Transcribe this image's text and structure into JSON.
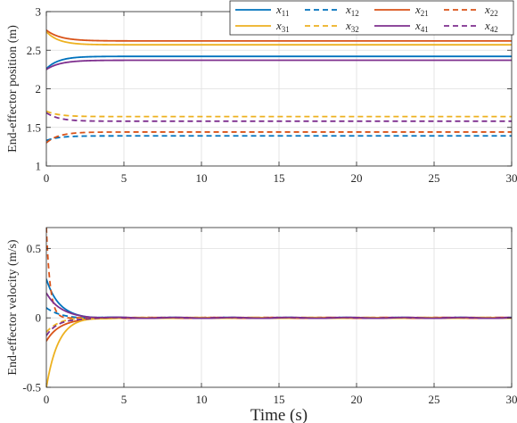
{
  "chart_data": [
    {
      "type": "line",
      "xlabel": "",
      "ylabel": "End-effector position (m)",
      "xlim": [
        0,
        30
      ],
      "ylim": [
        1,
        3
      ],
      "xticks": [
        "0",
        "5",
        "10",
        "15",
        "20",
        "25",
        "30"
      ],
      "yticks": [
        "1",
        "1.5",
        "2",
        "2.5",
        "3"
      ],
      "grid": true,
      "legend": "top-right",
      "series": [
        {
          "name": "x11",
          "sub": "11",
          "base": "x",
          "color": "#0072BD",
          "dash": false,
          "start": 2.26,
          "final": 2.42,
          "tau": 0.8
        },
        {
          "name": "x12",
          "sub": "12",
          "base": "x",
          "color": "#0072BD",
          "dash": true,
          "start": 1.33,
          "final": 1.39,
          "tau": 0.8
        },
        {
          "name": "x21",
          "sub": "21",
          "base": "x",
          "color": "#D95319",
          "dash": false,
          "start": 2.76,
          "final": 2.62,
          "tau": 0.9
        },
        {
          "name": "x22",
          "sub": "22",
          "base": "x",
          "color": "#D95319",
          "dash": true,
          "start": 1.3,
          "final": 1.44,
          "tau": 0.8
        },
        {
          "name": "x31",
          "sub": "31",
          "base": "x",
          "color": "#EDB120",
          "dash": false,
          "start": 2.74,
          "final": 2.57,
          "tau": 0.8
        },
        {
          "name": "x32",
          "sub": "32",
          "base": "x",
          "color": "#EDB120",
          "dash": true,
          "start": 1.71,
          "final": 1.64,
          "tau": 0.8
        },
        {
          "name": "x41",
          "sub": "41",
          "base": "x",
          "color": "#7E2F8E",
          "dash": false,
          "start": 2.25,
          "final": 2.37,
          "tau": 0.9
        },
        {
          "name": "x42",
          "sub": "42",
          "base": "x",
          "color": "#7E2F8E",
          "dash": true,
          "start": 1.69,
          "final": 1.58,
          "tau": 0.8
        }
      ]
    },
    {
      "type": "line",
      "xlabel": "Time (s)",
      "ylabel": "End-effector velocity (m/s)",
      "xlim": [
        0,
        30
      ],
      "ylim": [
        -0.5,
        0.65
      ],
      "xticks": [
        "0",
        "5",
        "10",
        "15",
        "20",
        "25",
        "30"
      ],
      "yticks": [
        "-0.5",
        "0",
        "0.5"
      ],
      "grid": true,
      "series": [
        {
          "name": "x11",
          "color": "#0072BD",
          "dash": false,
          "peak": 0.28,
          "tau": 0.8
        },
        {
          "name": "x12",
          "color": "#0072BD",
          "dash": true,
          "peak": 0.07,
          "tau": 0.8
        },
        {
          "name": "x21",
          "color": "#D95319",
          "dash": false,
          "peak": -0.17,
          "tau": 0.9
        },
        {
          "name": "x22",
          "color": "#D95319",
          "dash": true,
          "peak": 0.65,
          "tau": 0.25
        },
        {
          "name": "x31",
          "color": "#EDB120",
          "dash": false,
          "peak": -0.5,
          "tau": 0.75
        },
        {
          "name": "x32",
          "color": "#EDB120",
          "dash": true,
          "peak": -0.1,
          "tau": 0.8
        },
        {
          "name": "x41",
          "color": "#7E2F8E",
          "dash": false,
          "peak": 0.18,
          "tau": 0.9
        },
        {
          "name": "x42",
          "color": "#7E2F8E",
          "dash": true,
          "peak": -0.13,
          "tau": 0.8
        }
      ]
    }
  ]
}
